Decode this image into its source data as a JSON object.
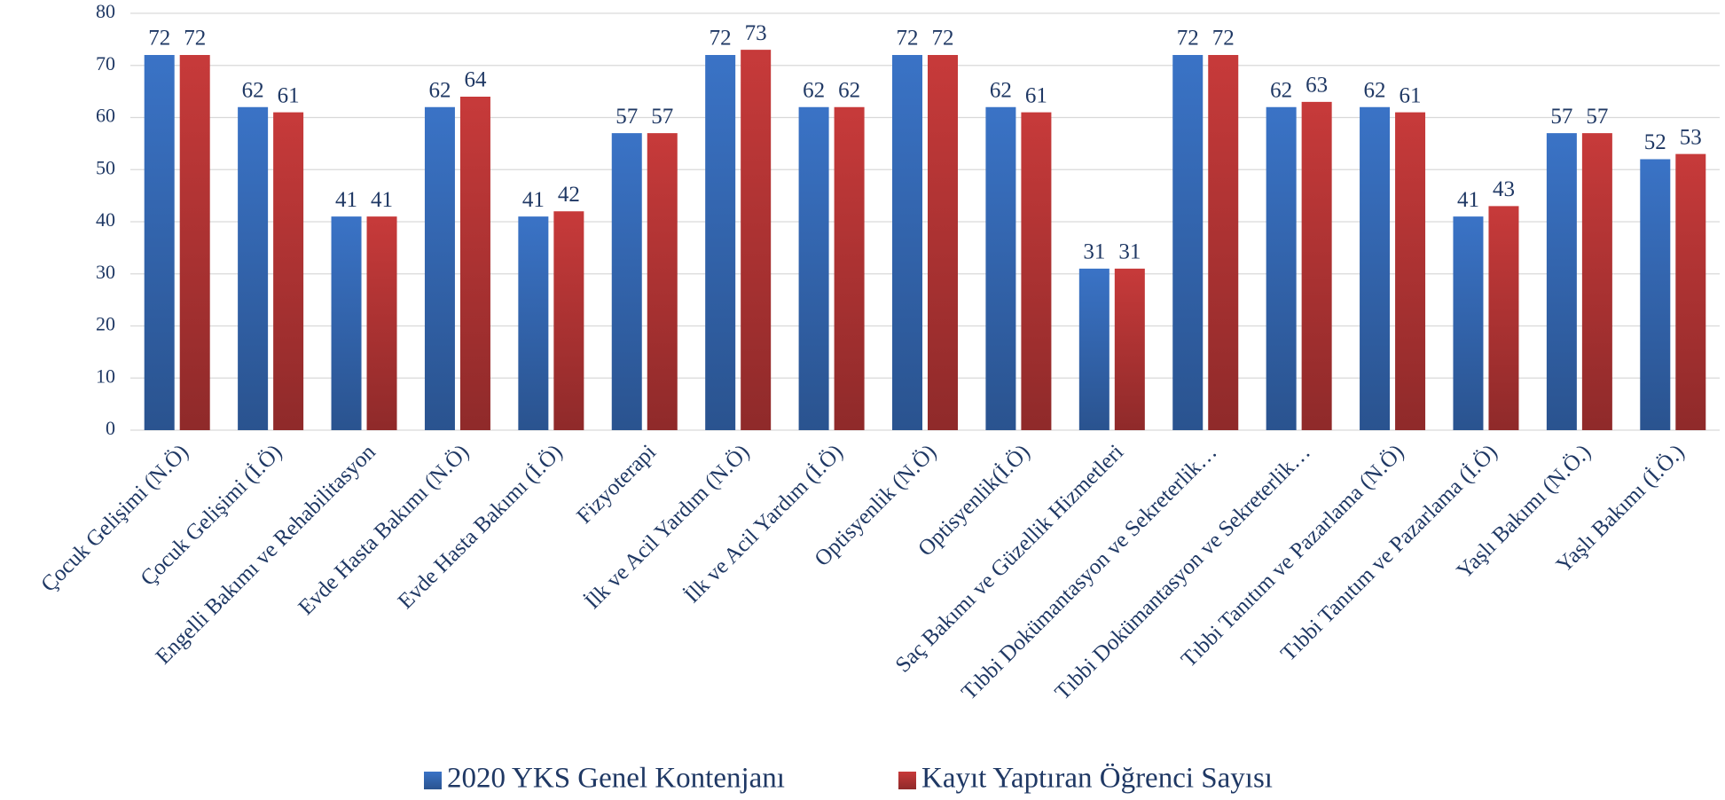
{
  "chart_data": {
    "type": "bar",
    "categories": [
      "Çocuk Gelişimi (N.Ö)",
      "Çocuk Gelişimi (İ.Ö)",
      "Engelli Bakımı ve Rehabilitasyon",
      "Evde Hasta Bakımı (N.Ö)",
      "Evde Hasta Bakımı (İ.Ö)",
      "Fizyoterapi",
      "İlk ve Acil Yardım (N.Ö)",
      "İlk ve Acil Yardım (İ.Ö)",
      "Optisyenlik (N.Ö)",
      "Optisyenlik(İ.Ö)",
      "Saç Bakımı ve Güzellik Hizmetleri",
      "Tıbbi Dokümantasyon ve Sekreterlik…",
      "Tıbbi Dokümantasyon ve Sekreterlik…",
      "Tıbbi Tanıtım ve Pazarlama (N.Ö)",
      "Tıbbi Tanıtım ve Pazarlama (İ.Ö)",
      "Yaşlı Bakımı (N.Ö.)",
      "Yaşlı Bakımı (İ.Ö.)"
    ],
    "series": [
      {
        "name": "2020 YKS Genel Kontenjanı",
        "color": "#3a73c6",
        "values": [
          72,
          62,
          41,
          62,
          41,
          57,
          72,
          62,
          72,
          62,
          31,
          72,
          62,
          62,
          41,
          57,
          52
        ]
      },
      {
        "name": "Kayıt Yaptıran Öğrenci Sayısı",
        "color": "#c73a3a",
        "values": [
          72,
          61,
          41,
          64,
          42,
          57,
          73,
          62,
          72,
          61,
          31,
          72,
          63,
          61,
          43,
          57,
          53
        ]
      }
    ],
    "ylim": [
      0,
      80
    ],
    "yticks": [
      0,
      10,
      20,
      30,
      40,
      50,
      60,
      70,
      80
    ],
    "grid": true,
    "legend": "bottom"
  }
}
